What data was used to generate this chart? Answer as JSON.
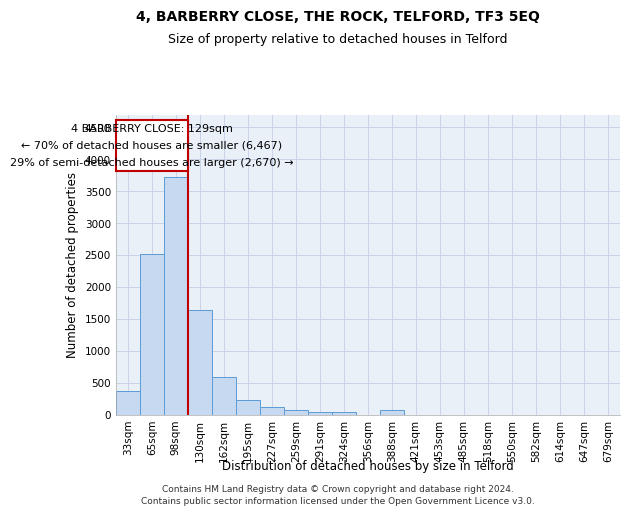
{
  "title": "4, BARBERRY CLOSE, THE ROCK, TELFORD, TF3 5EQ",
  "subtitle": "Size of property relative to detached houses in Telford",
  "xlabel": "Distribution of detached houses by size in Telford",
  "ylabel": "Number of detached properties",
  "categories": [
    "33sqm",
    "65sqm",
    "98sqm",
    "130sqm",
    "162sqm",
    "195sqm",
    "227sqm",
    "259sqm",
    "291sqm",
    "324sqm",
    "356sqm",
    "388sqm",
    "421sqm",
    "453sqm",
    "485sqm",
    "518sqm",
    "550sqm",
    "582sqm",
    "614sqm",
    "647sqm",
    "679sqm"
  ],
  "values": [
    370,
    2510,
    3720,
    1640,
    590,
    230,
    110,
    65,
    45,
    45,
    0,
    65,
    0,
    0,
    0,
    0,
    0,
    0,
    0,
    0,
    0
  ],
  "bar_color": "#c6d9f0",
  "bar_edge_color": "#5b9bd5",
  "vline_x_idx": 3,
  "vline_color": "#c00000",
  "annotation_line1": "4 BARBERRY CLOSE: 129sqm",
  "annotation_line2": "← 70% of detached houses are smaller (6,467)",
  "annotation_line3": "29% of semi-detached houses are larger (2,670) →",
  "annotation_box_color": "#c00000",
  "ylim": [
    0,
    4700
  ],
  "yticks": [
    0,
    500,
    1000,
    1500,
    2000,
    2500,
    3000,
    3500,
    4000,
    4500
  ],
  "footnote_line1": "Contains HM Land Registry data © Crown copyright and database right 2024.",
  "footnote_line2": "Contains public sector information licensed under the Open Government Licence v3.0.",
  "bg_color": "#ffffff",
  "plot_bg_color": "#eaf0f8",
  "grid_color": "#c8d4e8",
  "title_fontsize": 10,
  "subtitle_fontsize": 9,
  "axis_label_fontsize": 8.5,
  "tick_fontsize": 7.5,
  "annotation_fontsize": 8,
  "footnote_fontsize": 6.5
}
